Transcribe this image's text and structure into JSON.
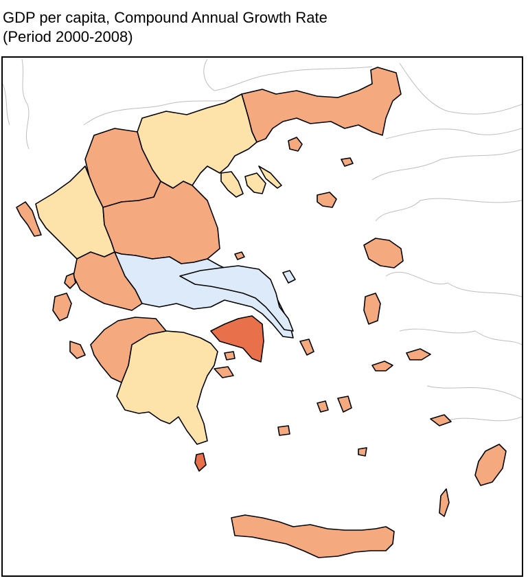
{
  "title": {
    "line1": "GDP per capita, Compound Annual Growth Rate",
    "line2": "(Period 2000-2008)"
  },
  "colors": {
    "class_light_yellow": "#fde3a9",
    "class_light_orange": "#f4a97f",
    "class_dark_orange": "#e8714b",
    "class_light_blue": "#ddeaf9",
    "outline": "#000000",
    "neighbour_border": "#bdbdbd"
  }
}
